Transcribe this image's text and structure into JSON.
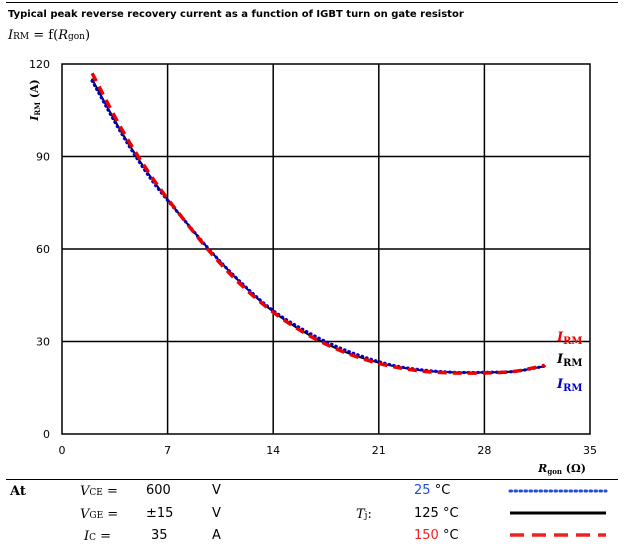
{
  "header": {
    "title": "Typical peak reverse recovery current as a function of IGBT turn on gate resistor",
    "function_label": {
      "main": "I",
      "main_sub": "RM",
      "eq": " = f(",
      "arg": "R",
      "arg_sub": "gon",
      "close": ")"
    }
  },
  "chart_data": {
    "type": "line",
    "xlim": [
      0,
      35
    ],
    "ylim": [
      0,
      120
    ],
    "x_ticks": [
      0,
      7,
      14,
      21,
      28,
      35
    ],
    "y_ticks": [
      0,
      30,
      60,
      90,
      120
    ],
    "xlabel": {
      "main": "R",
      "sub": "gon",
      "unit": " (Ω)"
    },
    "ylabel": {
      "main": "I",
      "sub": "RM",
      "unit": " (A)"
    },
    "grid": true,
    "series": [
      {
        "name": "IRM",
        "label_main": "I",
        "label_sub": "RM",
        "color": "#0000cc",
        "style": "dotted",
        "x": [
          2,
          4,
          6,
          8,
          10,
          12,
          14,
          16,
          18,
          20,
          22,
          24,
          26,
          28,
          30,
          32
        ],
        "y": [
          114.5,
          97,
          82,
          70,
          58.5,
          48.5,
          40,
          33.8,
          28.8,
          25,
          22.2,
          20.7,
          20,
          20,
          20.3,
          22
        ]
      },
      {
        "name": "IRM",
        "label_main": "I",
        "label_sub": "RM",
        "color": "#000000",
        "style": "solid",
        "x": [
          2,
          4,
          6,
          8,
          10,
          12,
          14,
          16,
          18,
          20,
          22,
          24,
          26,
          28,
          30,
          32
        ],
        "y": [
          115,
          97.5,
          82.5,
          70,
          58.5,
          48.3,
          39.7,
          33.2,
          28.2,
          24.5,
          22,
          20.5,
          20,
          20,
          20.3,
          22
        ]
      },
      {
        "name": "IRM",
        "label_main": "I",
        "label_sub": "RM",
        "color": "#ee0000",
        "style": "dashed",
        "x": [
          2,
          4,
          6,
          8,
          10,
          12,
          14,
          16,
          18,
          20,
          22,
          24,
          26,
          28,
          30,
          32
        ],
        "y": [
          117,
          98.5,
          83,
          70,
          58,
          47.8,
          39.5,
          33,
          28,
          24.3,
          21.8,
          20.3,
          19.8,
          19.8,
          20.3,
          22.3
        ]
      }
    ]
  },
  "conditions": {
    "at": "At",
    "vce": {
      "sym": "V",
      "sub": "CE",
      "eq": " =",
      "value": "600",
      "unit": "V"
    },
    "vge": {
      "sym": "V",
      "sub": "GE",
      "eq": " =",
      "value": "±15",
      "unit": "V"
    },
    "ic": {
      "sym": "I",
      "sub": "C",
      "eq": " =",
      "value": "35",
      "unit": "A"
    },
    "tj": {
      "sym": "T",
      "sub": "j",
      "eq": ":"
    },
    "temps": [
      {
        "value": "25",
        "unit": "°C",
        "color": "#1f4fd8",
        "style": "dotted"
      },
      {
        "value": "125",
        "unit": "°C",
        "color": "#000000",
        "style": "solid"
      },
      {
        "value": "150",
        "unit": "°C",
        "color": "#ee2222",
        "style": "dashed"
      }
    ]
  }
}
